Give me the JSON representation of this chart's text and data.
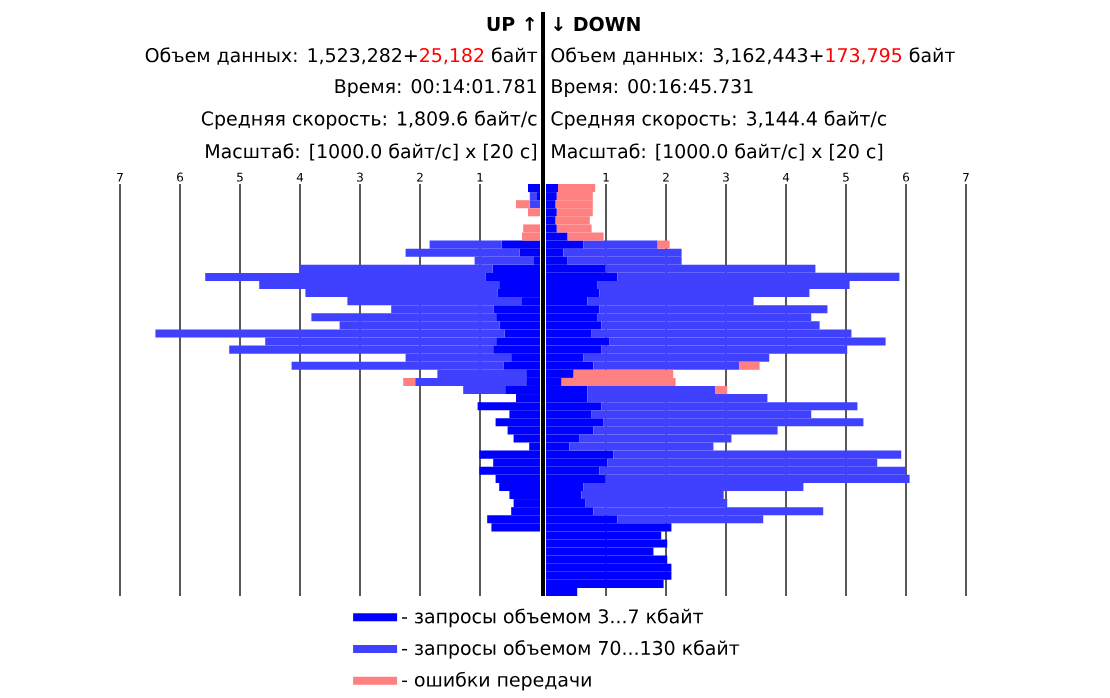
{
  "chart_data": [
    {
      "type": "bar",
      "orientation": "horizontal",
      "stacked": true,
      "title": "UP ↑",
      "annotations": [
        "Объем данных: 1,523,282+",
        "25,182",
        "байт",
        "Время: 00:14:01.781",
        "Средняя скорость: 1,809.6 байт/с",
        "Масштаб: [1000.0 байт/с] x [20 с]"
      ],
      "categories": [
        null,
        null,
        null,
        null,
        null,
        null,
        null,
        null,
        null,
        null,
        null,
        null,
        null,
        null,
        null,
        null,
        null,
        null,
        null,
        null,
        null,
        null,
        null,
        null,
        null,
        null,
        null,
        null,
        null,
        null,
        null,
        null,
        null,
        null,
        null,
        null,
        null,
        null,
        null,
        null,
        null,
        null,
        null,
        null,
        null,
        null,
        null,
        null,
        null,
        null,
        null
      ],
      "xlim": [
        7,
        0
      ],
      "xticks": [
        1,
        2,
        3,
        4,
        5,
        6,
        7
      ],
      "grid": "x",
      "legend": "bottom",
      "series": [
        {
          "name": "- запросы объемом 3...7 кбайт",
          "color": "#0000ff",
          "values": [
            0.2,
            0.05,
            null,
            null,
            null,
            null,
            null,
            0.64,
            0.34,
            0.1,
            0.79,
            0.91,
            0.68,
            0.71,
            0.3,
            0.77,
            0.73,
            0.67,
            0.59,
            0.73,
            0.78,
            0.48,
            0.61,
            0.23,
            0.23,
            0.58,
            0.4,
            1.04,
            0.51,
            0.74,
            0.54,
            0.44,
            0.18,
            1.01,
            0.78,
            1.01,
            0.74,
            0.68,
            0.51,
            0.44,
            0.48,
            0.88,
            0.81,
            null,
            null,
            null,
            null,
            null,
            null,
            null,
            null
          ]
        },
        {
          "name": "- запросы объемом 70...130 кбайт",
          "color": "#4040ff",
          "values": [
            null,
            0.12,
            0.17,
            null,
            null,
            null,
            null,
            1.2,
            1.9,
            0.99,
            3.21,
            4.67,
            4.0,
            3.2,
            2.91,
            1.71,
            3.08,
            2.67,
            5.82,
            3.85,
            4.4,
            1.76,
            3.53,
            1.48,
            1.85,
            0.7,
            null,
            null,
            null,
            null,
            null,
            null,
            null,
            null,
            null,
            null,
            null,
            null,
            null,
            null,
            null,
            null,
            null,
            null,
            null,
            null,
            null,
            null,
            null,
            null,
            null
          ]
        },
        {
          "name": "- ошибки передачи",
          "color": "#ff8080",
          "values": [
            null,
            null,
            0.23,
            0.2,
            null,
            0.28,
            0.3,
            null,
            null,
            null,
            null,
            null,
            null,
            null,
            null,
            null,
            null,
            null,
            null,
            null,
            null,
            null,
            null,
            null,
            0.2,
            null,
            null,
            null,
            null,
            null,
            null,
            null,
            null,
            null,
            null,
            null,
            null,
            null,
            null,
            null,
            null,
            null,
            null,
            null,
            null,
            null,
            null,
            null,
            null,
            null,
            null
          ]
        }
      ]
    },
    {
      "type": "bar",
      "orientation": "horizontal",
      "stacked": true,
      "title": "↓ DOWN",
      "annotations": [
        "Объем данных: 3,162,443+",
        "173,795",
        "байт",
        "Время: 00:16:45.731",
        "Средняя скорость: 3,144.4 байт/с",
        "Масштаб: [1000.0 байт/с] x [20 с]"
      ],
      "categories": [
        null,
        null,
        null,
        null,
        null,
        null,
        null,
        null,
        null,
        null,
        null,
        null,
        null,
        null,
        null,
        null,
        null,
        null,
        null,
        null,
        null,
        null,
        null,
        null,
        null,
        null,
        null,
        null,
        null,
        null,
        null,
        null,
        null,
        null,
        null,
        null,
        null,
        null,
        null,
        null,
        null,
        null,
        null,
        null,
        null,
        null,
        null,
        null,
        null,
        null,
        null
      ],
      "xlim": [
        0,
        7
      ],
      "xticks": [
        1,
        2,
        3,
        4,
        5,
        6,
        7
      ],
      "grid": "x",
      "series": [
        {
          "color": "#0000ff",
          "values": [
            0.2,
            0.18,
            0.16,
            0.18,
            0.16,
            0.18,
            0.36,
            0.62,
            0.29,
            0.36,
            0.99,
            1.19,
            0.86,
            0.89,
            0.69,
            0.89,
            0.86,
            0.92,
            0.76,
            1.06,
            0.92,
            0.62,
            0.79,
            0.46,
            0.26,
            0.69,
            0.69,
            0.92,
            0.76,
            0.96,
            0.79,
            0.56,
            0.39,
            1.12,
            1.02,
            0.89,
            0.99,
            0.62,
            0.59,
            0.66,
            0.79,
            1.19,
            2.09,
            1.92,
            2.02,
            1.79,
            2.02,
            2.09,
            2.09,
            1.96,
            0.52
          ]
        },
        {
          "color": "#4040ff",
          "values": [
            null,
            null,
            null,
            null,
            null,
            null,
            null,
            1.24,
            1.97,
            1.9,
            3.5,
            4.7,
            4.2,
            3.5,
            2.77,
            3.8,
            3.56,
            3.64,
            4.33,
            4.6,
            4.1,
            3.1,
            2.43,
            null,
            null,
            2.13,
            3.0,
            4.27,
            3.66,
            4.33,
            3.07,
            2.53,
            2.4,
            4.8,
            4.5,
            5.1,
            5.07,
            3.67,
            2.37,
            2.36,
            3.83,
            2.43,
            null,
            null,
            null,
            null,
            null,
            null,
            null,
            null,
            null
          ]
        },
        {
          "color": "#ff8080",
          "values": [
            0.62,
            0.6,
            0.62,
            0.6,
            0.57,
            0.58,
            0.6,
            0.2,
            null,
            null,
            null,
            null,
            null,
            null,
            null,
            null,
            null,
            null,
            null,
            null,
            null,
            null,
            0.34,
            1.66,
            1.9,
            0.2,
            null,
            null,
            null,
            null,
            null,
            null,
            null,
            null,
            null,
            null,
            null,
            null,
            null,
            null,
            null,
            null,
            null,
            null,
            null,
            null,
            null,
            null,
            null,
            null,
            null
          ]
        }
      ]
    }
  ]
}
